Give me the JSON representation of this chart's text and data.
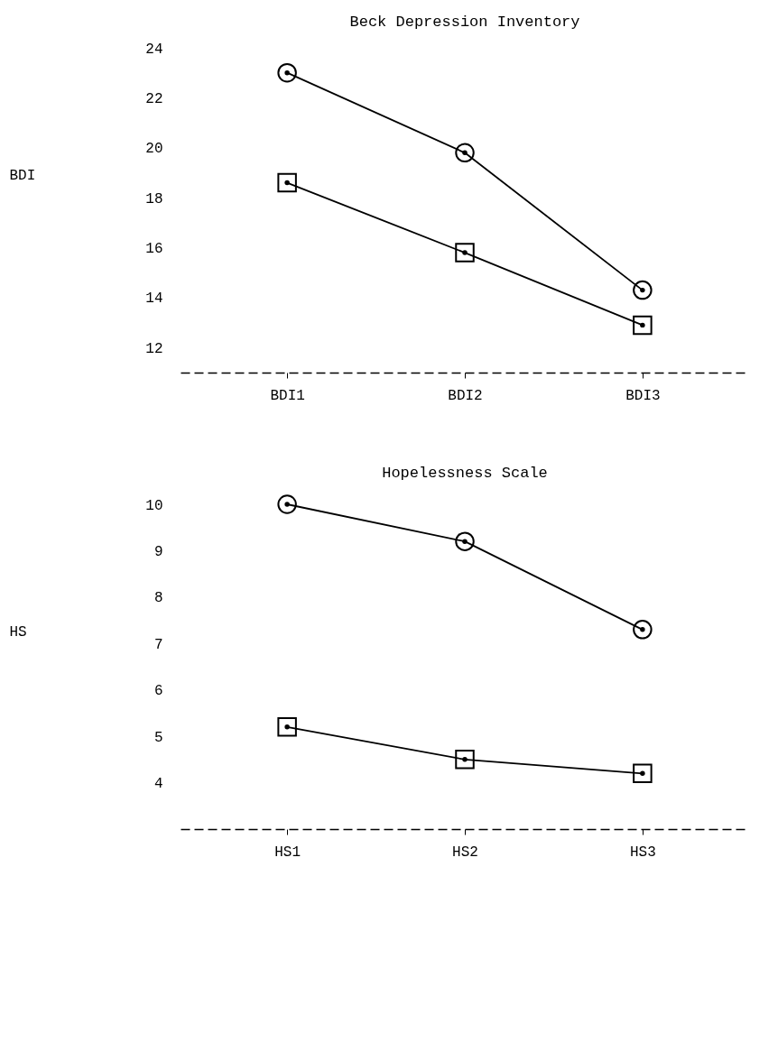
{
  "chart_data": [
    {
      "type": "line",
      "title": "Beck Depression Inventory",
      "ylabel": "BDI",
      "categories": [
        "BDI1",
        "BDI2",
        "BDI3"
      ],
      "series": [
        {
          "color": "#000000",
          "marker": "circle",
          "values": [
            23.0,
            19.8,
            14.3
          ]
        },
        {
          "color": "#000000",
          "marker": "square",
          "values": [
            18.6,
            15.8,
            12.9
          ]
        }
      ],
      "ylim": [
        11,
        24
      ],
      "yticks": [
        12,
        14,
        16,
        18,
        20,
        22,
        24
      ],
      "grid": false,
      "legend": false,
      "line_style": "solid"
    },
    {
      "type": "line",
      "title": "Hopelessness Scale",
      "ylabel": "HS",
      "categories": [
        "HS1",
        "HS2",
        "HS3"
      ],
      "series": [
        {
          "color": "#000000",
          "marker": "circle",
          "values": [
            10.0,
            9.2,
            7.3
          ]
        },
        {
          "color": "#000000",
          "marker": "square",
          "values": [
            5.2,
            4.5,
            4.2
          ]
        }
      ],
      "ylim": [
        3,
        10
      ],
      "yticks": [
        4,
        5,
        6,
        7,
        8,
        9,
        10
      ],
      "grid": false,
      "legend": false,
      "line_style": "solid"
    }
  ]
}
